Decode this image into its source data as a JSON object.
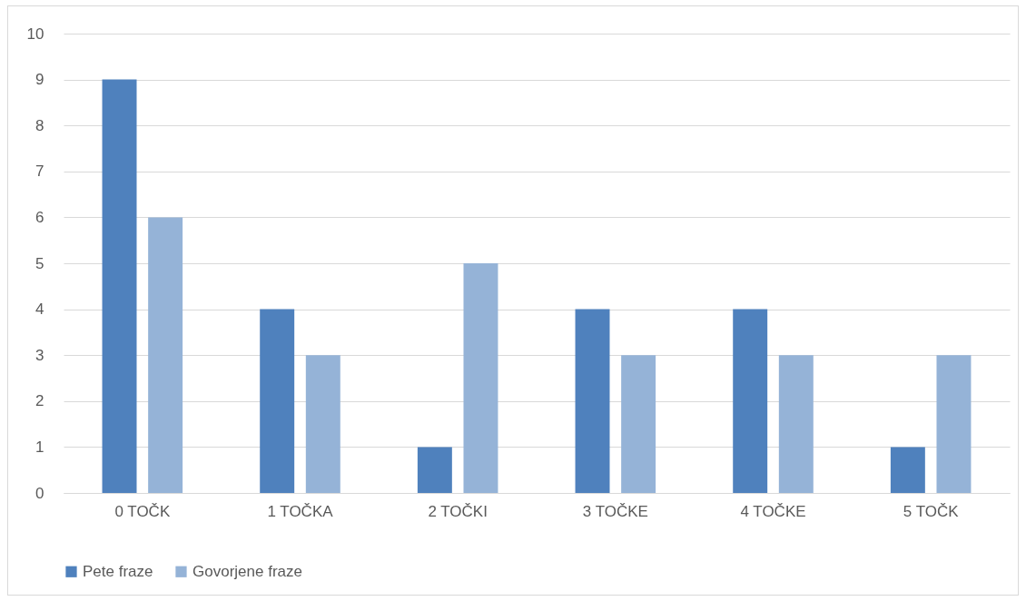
{
  "chart_data": {
    "type": "bar",
    "categories": [
      "0 TOČK",
      "1 TOČKA",
      "2 TOČKI",
      "3 TOČKE",
      "4 TOČKE",
      "5 TOČK"
    ],
    "series": [
      {
        "name": "Pete fraze",
        "color": "#4f81bd",
        "values": [
          9,
          4,
          1,
          4,
          4,
          1
        ]
      },
      {
        "name": "Govorjene fraze",
        "color": "#95b3d7",
        "values": [
          6,
          3,
          5,
          3,
          3,
          3
        ]
      }
    ],
    "ylim": [
      0,
      10
    ],
    "yticks": [
      0,
      1,
      2,
      3,
      4,
      5,
      6,
      7,
      8,
      9,
      10
    ],
    "grid": "y",
    "legend": "bottom"
  }
}
